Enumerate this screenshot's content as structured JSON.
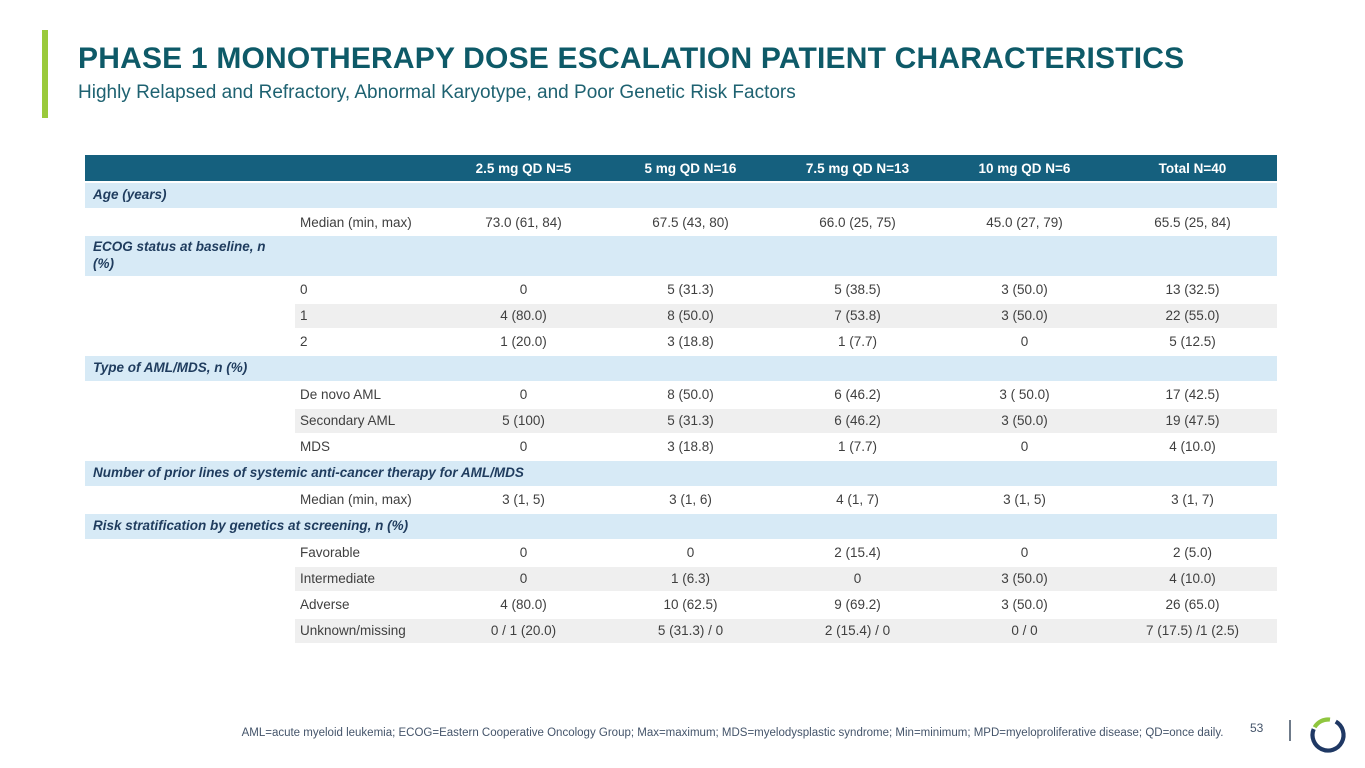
{
  "slide": {
    "title": "PHASE 1 MONOTHERAPY DOSE ESCALATION PATIENT CHARACTERISTICS",
    "subtitle": "Highly Relapsed and Refractory, Abnormal Karyotype, and Poor Genetic Risk Factors",
    "footnote": "AML=acute myeloid leukemia; ECOG=Eastern Cooperative Oncology Group; Max=maximum; MDS=myelodysplastic syndrome; Min=minimum; MPD=myeloproliferative disease; QD=once daily.",
    "page_number": "53",
    "colors": {
      "title_teal": "#0e5a68",
      "accent_green": "#9aca3b",
      "table_header_bg": "#15607e",
      "section_row_bg": "#d7eaf6",
      "stripe_row_bg": "#efefef",
      "body_text": "#3f3f3f",
      "section_text": "#1f3c5e",
      "footnote_text": "#44546a",
      "logo_navy": "#1f3864",
      "logo_green": "#8fc63f"
    }
  },
  "table": {
    "columns": [
      "",
      "",
      "2.5 mg QD N=5",
      "5 mg QD N=16",
      "7.5 mg QD N=13",
      "10 mg QD N=6",
      "Total N=40"
    ],
    "rows": [
      {
        "type": "section",
        "label": "Age (years)"
      },
      {
        "type": "data",
        "label": "Median (min, max)",
        "values": [
          "73.0 (61, 84)",
          "67.5 (43, 80)",
          "66.0 (25, 75)",
          "45.0 (27, 79)",
          "65.5 (25, 84)"
        ],
        "shaded": false
      },
      {
        "type": "section",
        "label": "ECOG status at baseline, n\n(%)"
      },
      {
        "type": "data",
        "label": "0",
        "values": [
          "0",
          "5 (31.3)",
          "5 (38.5)",
          "3 (50.0)",
          "13 (32.5)"
        ],
        "shaded": false
      },
      {
        "type": "data",
        "label": "1",
        "values": [
          "4 (80.0)",
          "8 (50.0)",
          "7 (53.8)",
          "3 (50.0)",
          "22 (55.0)"
        ],
        "shaded": true
      },
      {
        "type": "data",
        "label": "2",
        "values": [
          "1 (20.0)",
          "3 (18.8)",
          "1 (7.7)",
          "0",
          "5 (12.5)"
        ],
        "shaded": false
      },
      {
        "type": "section",
        "label": "Type of AML/MDS, n (%)"
      },
      {
        "type": "data",
        "label": "De novo AML",
        "values": [
          "0",
          "8 (50.0)",
          "6 (46.2)",
          "3 ( 50.0)",
          "17 (42.5)"
        ],
        "shaded": false
      },
      {
        "type": "data",
        "label": "Secondary AML",
        "values": [
          "5 (100)",
          "5 (31.3)",
          "6 (46.2)",
          "3 (50.0)",
          "19 (47.5)"
        ],
        "shaded": true
      },
      {
        "type": "data",
        "label": "MDS",
        "values": [
          "0",
          "3 (18.8)",
          "1 (7.7)",
          "0",
          "4 (10.0)"
        ],
        "shaded": false
      },
      {
        "type": "section",
        "label": "Number of prior lines of systemic anti-cancer therapy for AML/MDS"
      },
      {
        "type": "data",
        "label": "Median (min, max)",
        "values": [
          "3 (1, 5)",
          "3 (1, 6)",
          "4 (1, 7)",
          "3 (1, 5)",
          "3 (1, 7)"
        ],
        "shaded": false
      },
      {
        "type": "section",
        "label": "Risk stratification by genetics at screening, n (%)"
      },
      {
        "type": "data",
        "label": "Favorable",
        "values": [
          "0",
          "0",
          "2 (15.4)",
          "0",
          "2 (5.0)"
        ],
        "shaded": false
      },
      {
        "type": "data",
        "label": "Intermediate",
        "values": [
          "0",
          "1 (6.3)",
          "0",
          "3 (50.0)",
          "4 (10.0)"
        ],
        "shaded": true
      },
      {
        "type": "data",
        "label": "Adverse",
        "values": [
          "4 (80.0)",
          "10 (62.5)",
          "9 (69.2)",
          "3 (50.0)",
          "26 (65.0)"
        ],
        "shaded": false
      },
      {
        "type": "data",
        "label": "Unknown/missing",
        "values": [
          "0 / 1 (20.0)",
          "5 (31.3) / 0",
          "2 (15.4) / 0",
          "0 / 0",
          "7 (17.5) /1 (2.5)"
        ],
        "shaded": true
      }
    ]
  }
}
